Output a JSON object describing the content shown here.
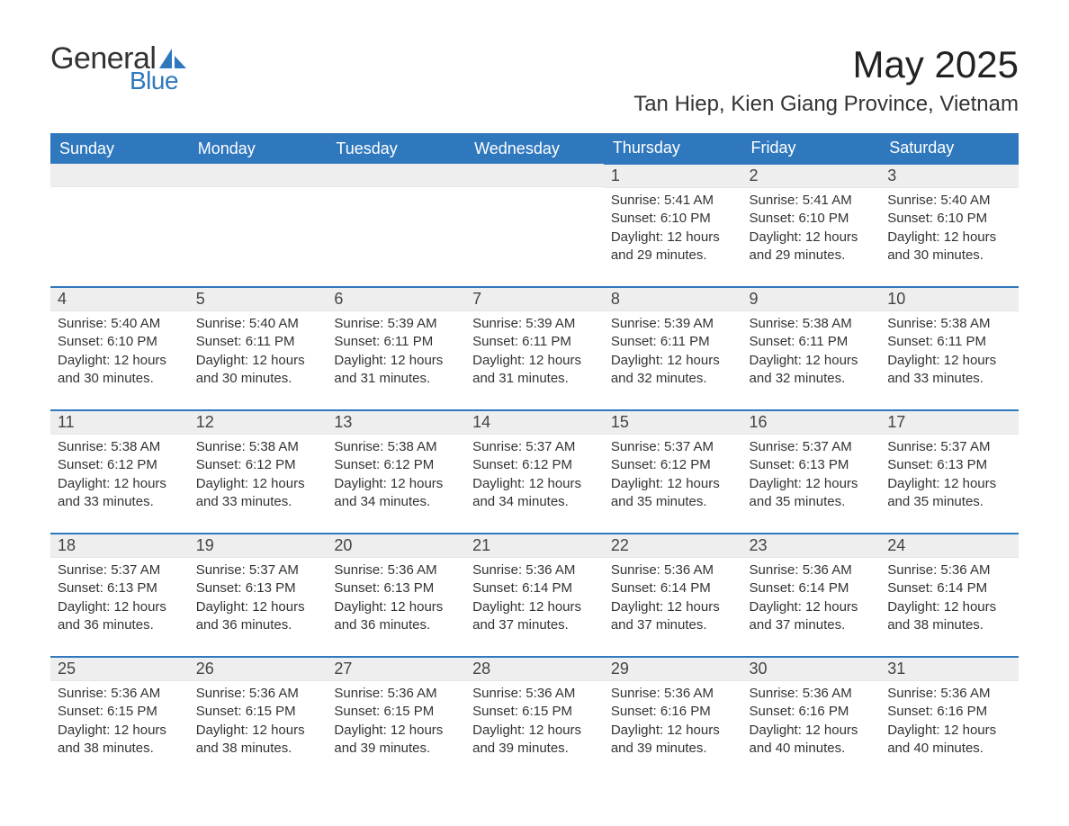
{
  "brand": {
    "word1": "General",
    "word2": "Blue",
    "accent_color": "#2f78bd"
  },
  "title": "May 2025",
  "location": "Tan Hiep, Kien Giang Province, Vietnam",
  "colors": {
    "header_bg": "#2f78bd",
    "header_text": "#ffffff",
    "day_bg": "#eeeeee",
    "text": "#333333",
    "page_bg": "#ffffff"
  },
  "day_headers": [
    "Sunday",
    "Monday",
    "Tuesday",
    "Wednesday",
    "Thursday",
    "Friday",
    "Saturday"
  ],
  "weeks": [
    [
      {
        "blank": true
      },
      {
        "blank": true
      },
      {
        "blank": true
      },
      {
        "blank": true
      },
      {
        "num": "1",
        "sunrise": "Sunrise: 5:41 AM",
        "sunset": "Sunset: 6:10 PM",
        "daylight": "Daylight: 12 hours and 29 minutes."
      },
      {
        "num": "2",
        "sunrise": "Sunrise: 5:41 AM",
        "sunset": "Sunset: 6:10 PM",
        "daylight": "Daylight: 12 hours and 29 minutes."
      },
      {
        "num": "3",
        "sunrise": "Sunrise: 5:40 AM",
        "sunset": "Sunset: 6:10 PM",
        "daylight": "Daylight: 12 hours and 30 minutes."
      }
    ],
    [
      {
        "num": "4",
        "sunrise": "Sunrise: 5:40 AM",
        "sunset": "Sunset: 6:10 PM",
        "daylight": "Daylight: 12 hours and 30 minutes."
      },
      {
        "num": "5",
        "sunrise": "Sunrise: 5:40 AM",
        "sunset": "Sunset: 6:11 PM",
        "daylight": "Daylight: 12 hours and 30 minutes."
      },
      {
        "num": "6",
        "sunrise": "Sunrise: 5:39 AM",
        "sunset": "Sunset: 6:11 PM",
        "daylight": "Daylight: 12 hours and 31 minutes."
      },
      {
        "num": "7",
        "sunrise": "Sunrise: 5:39 AM",
        "sunset": "Sunset: 6:11 PM",
        "daylight": "Daylight: 12 hours and 31 minutes."
      },
      {
        "num": "8",
        "sunrise": "Sunrise: 5:39 AM",
        "sunset": "Sunset: 6:11 PM",
        "daylight": "Daylight: 12 hours and 32 minutes."
      },
      {
        "num": "9",
        "sunrise": "Sunrise: 5:38 AM",
        "sunset": "Sunset: 6:11 PM",
        "daylight": "Daylight: 12 hours and 32 minutes."
      },
      {
        "num": "10",
        "sunrise": "Sunrise: 5:38 AM",
        "sunset": "Sunset: 6:11 PM",
        "daylight": "Daylight: 12 hours and 33 minutes."
      }
    ],
    [
      {
        "num": "11",
        "sunrise": "Sunrise: 5:38 AM",
        "sunset": "Sunset: 6:12 PM",
        "daylight": "Daylight: 12 hours and 33 minutes."
      },
      {
        "num": "12",
        "sunrise": "Sunrise: 5:38 AM",
        "sunset": "Sunset: 6:12 PM",
        "daylight": "Daylight: 12 hours and 33 minutes."
      },
      {
        "num": "13",
        "sunrise": "Sunrise: 5:38 AM",
        "sunset": "Sunset: 6:12 PM",
        "daylight": "Daylight: 12 hours and 34 minutes."
      },
      {
        "num": "14",
        "sunrise": "Sunrise: 5:37 AM",
        "sunset": "Sunset: 6:12 PM",
        "daylight": "Daylight: 12 hours and 34 minutes."
      },
      {
        "num": "15",
        "sunrise": "Sunrise: 5:37 AM",
        "sunset": "Sunset: 6:12 PM",
        "daylight": "Daylight: 12 hours and 35 minutes."
      },
      {
        "num": "16",
        "sunrise": "Sunrise: 5:37 AM",
        "sunset": "Sunset: 6:13 PM",
        "daylight": "Daylight: 12 hours and 35 minutes."
      },
      {
        "num": "17",
        "sunrise": "Sunrise: 5:37 AM",
        "sunset": "Sunset: 6:13 PM",
        "daylight": "Daylight: 12 hours and 35 minutes."
      }
    ],
    [
      {
        "num": "18",
        "sunrise": "Sunrise: 5:37 AM",
        "sunset": "Sunset: 6:13 PM",
        "daylight": "Daylight: 12 hours and 36 minutes."
      },
      {
        "num": "19",
        "sunrise": "Sunrise: 5:37 AM",
        "sunset": "Sunset: 6:13 PM",
        "daylight": "Daylight: 12 hours and 36 minutes."
      },
      {
        "num": "20",
        "sunrise": "Sunrise: 5:36 AM",
        "sunset": "Sunset: 6:13 PM",
        "daylight": "Daylight: 12 hours and 36 minutes."
      },
      {
        "num": "21",
        "sunrise": "Sunrise: 5:36 AM",
        "sunset": "Sunset: 6:14 PM",
        "daylight": "Daylight: 12 hours and 37 minutes."
      },
      {
        "num": "22",
        "sunrise": "Sunrise: 5:36 AM",
        "sunset": "Sunset: 6:14 PM",
        "daylight": "Daylight: 12 hours and 37 minutes."
      },
      {
        "num": "23",
        "sunrise": "Sunrise: 5:36 AM",
        "sunset": "Sunset: 6:14 PM",
        "daylight": "Daylight: 12 hours and 37 minutes."
      },
      {
        "num": "24",
        "sunrise": "Sunrise: 5:36 AM",
        "sunset": "Sunset: 6:14 PM",
        "daylight": "Daylight: 12 hours and 38 minutes."
      }
    ],
    [
      {
        "num": "25",
        "sunrise": "Sunrise: 5:36 AM",
        "sunset": "Sunset: 6:15 PM",
        "daylight": "Daylight: 12 hours and 38 minutes."
      },
      {
        "num": "26",
        "sunrise": "Sunrise: 5:36 AM",
        "sunset": "Sunset: 6:15 PM",
        "daylight": "Daylight: 12 hours and 38 minutes."
      },
      {
        "num": "27",
        "sunrise": "Sunrise: 5:36 AM",
        "sunset": "Sunset: 6:15 PM",
        "daylight": "Daylight: 12 hours and 39 minutes."
      },
      {
        "num": "28",
        "sunrise": "Sunrise: 5:36 AM",
        "sunset": "Sunset: 6:15 PM",
        "daylight": "Daylight: 12 hours and 39 minutes."
      },
      {
        "num": "29",
        "sunrise": "Sunrise: 5:36 AM",
        "sunset": "Sunset: 6:16 PM",
        "daylight": "Daylight: 12 hours and 39 minutes."
      },
      {
        "num": "30",
        "sunrise": "Sunrise: 5:36 AM",
        "sunset": "Sunset: 6:16 PM",
        "daylight": "Daylight: 12 hours and 40 minutes."
      },
      {
        "num": "31",
        "sunrise": "Sunrise: 5:36 AM",
        "sunset": "Sunset: 6:16 PM",
        "daylight": "Daylight: 12 hours and 40 minutes."
      }
    ]
  ]
}
